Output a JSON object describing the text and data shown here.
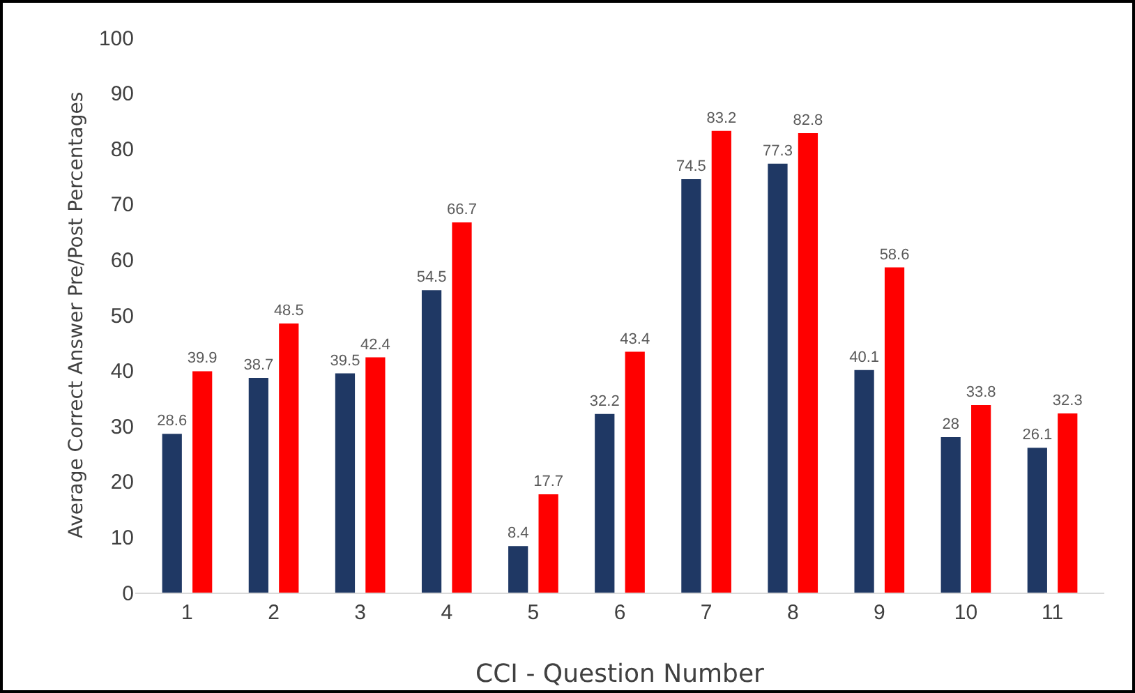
{
  "chart_data": {
    "type": "bar",
    "xlabel": "CCI - Question Number",
    "ylabel": "Average Correct Answer Pre/Post Percentages",
    "categories": [
      "1",
      "2",
      "3",
      "4",
      "5",
      "6",
      "7",
      "8",
      "9",
      "10",
      "11"
    ],
    "series": [
      {
        "color": "#1f3864",
        "values": [
          28.6,
          38.7,
          39.5,
          54.5,
          8.4,
          32.2,
          74.5,
          77.3,
          40.1,
          28,
          26.1
        ]
      },
      {
        "color": "#ff0000",
        "values": [
          39.9,
          48.5,
          42.4,
          66.7,
          17.7,
          43.4,
          83.2,
          82.8,
          58.6,
          33.8,
          32.3
        ]
      }
    ],
    "ylim": [
      0,
      100
    ],
    "yticks": [
      0,
      10,
      20,
      30,
      40,
      50,
      60,
      70,
      80,
      90,
      100
    ],
    "grid": false,
    "data_labels": true
  }
}
